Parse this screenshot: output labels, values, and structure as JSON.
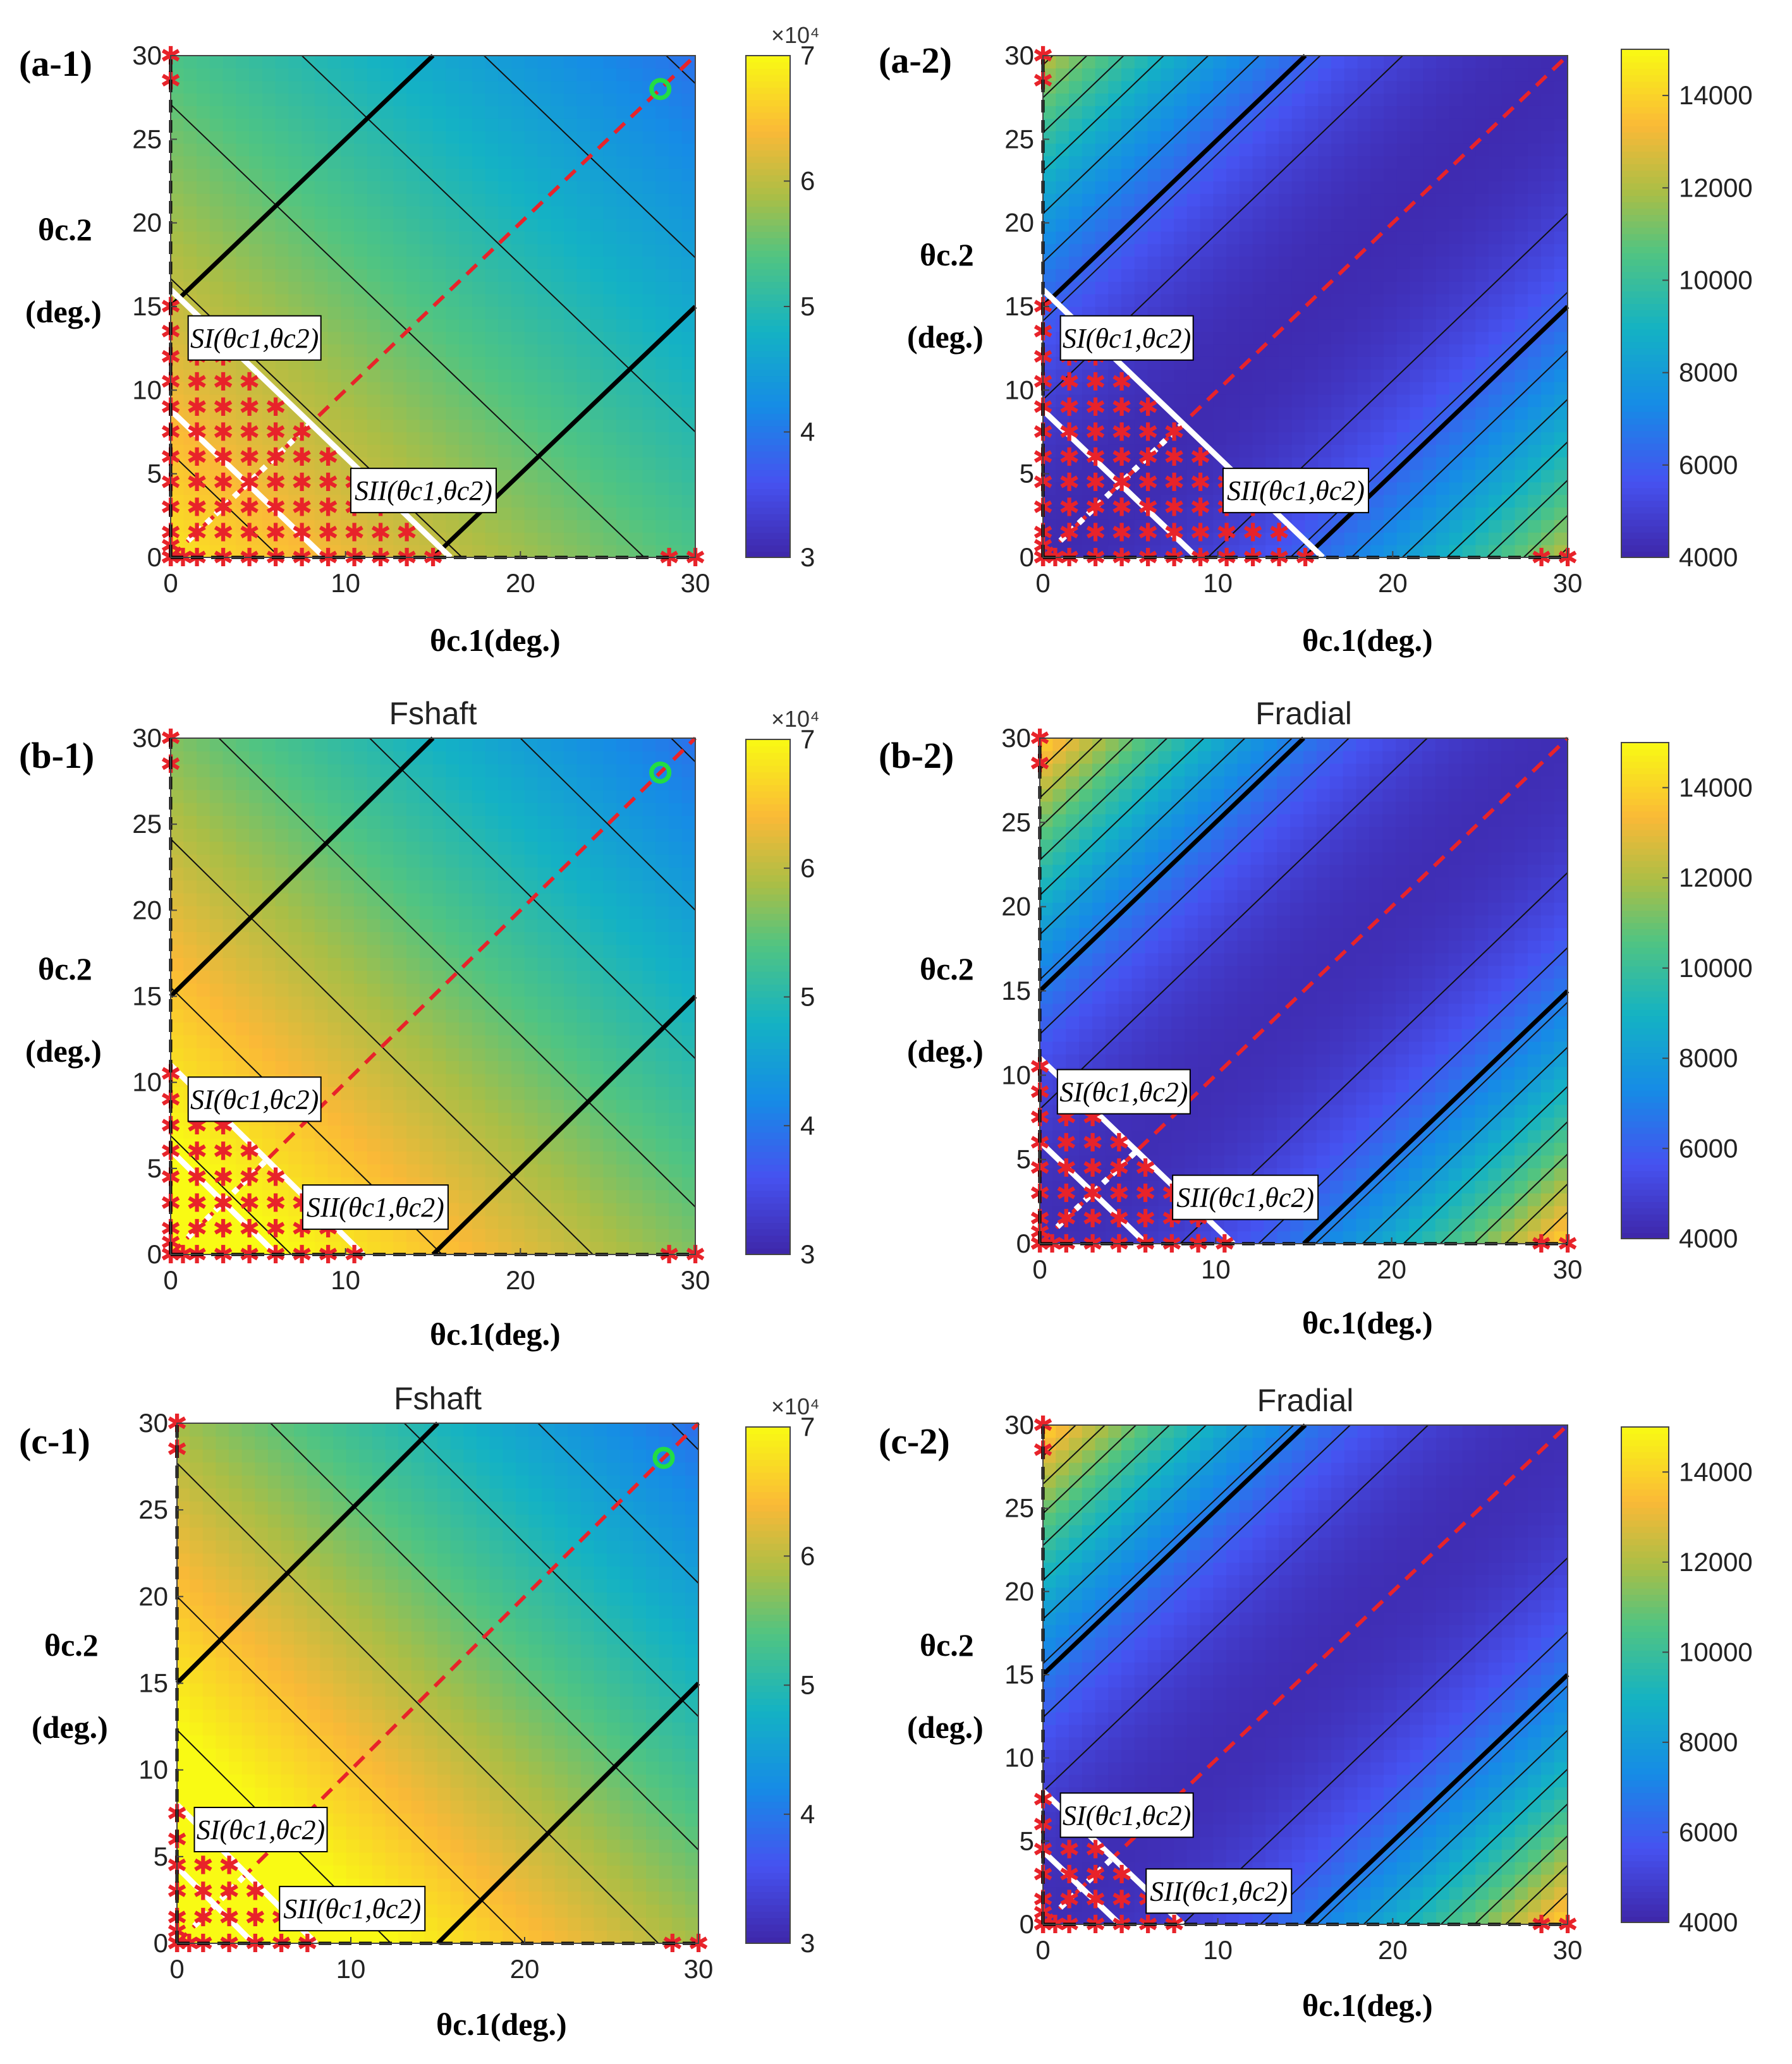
{
  "figure": {
    "layout": "3 rows x 2 columns of contour panels"
  },
  "chart_data": [
    {
      "id": "a-1",
      "label": "(a-1)",
      "type": "contour",
      "title": "",
      "multiplier": "×10⁴",
      "xlabel": "θc.1(deg.)",
      "ylabel": "θc.2 (deg.)",
      "xlim": [
        0,
        30
      ],
      "ylim": [
        0,
        30
      ],
      "xticks": [
        "0",
        "10",
        "20",
        "30"
      ],
      "yticks": [
        "0",
        "5",
        "10",
        "15",
        "20",
        "25",
        "30"
      ],
      "colorbar": {
        "min": 3,
        "max": 7,
        "ticks": [
          "3",
          "4",
          "5",
          "6",
          "7"
        ]
      },
      "field": {
        "base": 6.8,
        "kSum": -0.048,
        "kDiff": 0,
        "levels": [
          4.0,
          4.5,
          5.0,
          5.5,
          6.0,
          6.5
        ]
      },
      "annotations": [
        "SI(θc1,θc2)",
        "SII(θc1,θc2)"
      ],
      "optimum": [
        28,
        28
      ]
    },
    {
      "id": "a-2",
      "label": "(a-2)",
      "type": "contour",
      "title": "",
      "multiplier": "",
      "xlabel": "θc.1(deg.)",
      "ylabel": "θc.2 (deg.)",
      "xlim": [
        0,
        30
      ],
      "ylim": [
        0,
        30
      ],
      "xticks": [
        "0",
        "10",
        "20",
        "30"
      ],
      "yticks": [
        "0",
        "5",
        "10",
        "15",
        "20",
        "25",
        "30"
      ],
      "colorbar": {
        "min": 4000,
        "max": 15000,
        "ticks": [
          "4000",
          "6000",
          "8000",
          "10000",
          "12000",
          "14000"
        ]
      },
      "field": {
        "base": 4200,
        "kSum": 0,
        "kDiff": 9,
        "levels": [
          5000,
          6000,
          7000,
          8000,
          9000,
          10000,
          11000,
          12000
        ]
      },
      "annotations": [
        "SI(θc1,θc2)",
        "SII(θc1,θc2)"
      ]
    },
    {
      "id": "b-1",
      "label": "(b-1)",
      "type": "contour",
      "title": "Fshaft",
      "multiplier": "×10⁴",
      "xlabel": "θc.1(deg.)",
      "ylabel": "θc.2 (deg.)",
      "xlim": [
        0,
        30
      ],
      "ylim": [
        0,
        30
      ],
      "xticks": [
        "0",
        "10",
        "20",
        "30"
      ],
      "yticks": [
        "0",
        "5",
        "10",
        "15",
        "20",
        "25",
        "30"
      ],
      "colorbar": {
        "min": 3,
        "max": 7,
        "ticks": [
          "3",
          "4",
          "5",
          "6",
          "7"
        ]
      },
      "field": {
        "base": 7.4,
        "kSum": -0.058,
        "kDiff": 0,
        "levels": [
          4.0,
          4.5,
          5.0,
          5.5,
          6.0,
          6.5,
          7.0
        ]
      },
      "annotations": [
        "SI(θc1,θc2)",
        "SII(θc1,θc2)"
      ],
      "optimum": [
        28,
        28
      ]
    },
    {
      "id": "b-2",
      "label": "(b-2)",
      "type": "contour",
      "title": "Fradial",
      "multiplier": "",
      "xlabel": "θc.1(deg.)",
      "ylabel": "θc.2 (deg.)",
      "xlim": [
        0,
        30
      ],
      "ylim": [
        0,
        30
      ],
      "xticks": [
        "0",
        "10",
        "20",
        "30"
      ],
      "yticks": [
        "0",
        "5",
        "10",
        "15",
        "20",
        "25",
        "30"
      ],
      "colorbar": {
        "min": 4000,
        "max": 15000,
        "ticks": [
          "4000",
          "6000",
          "8000",
          "10000",
          "12000",
          "14000"
        ]
      },
      "field": {
        "base": 4300,
        "kSum": 0,
        "kDiff": 11,
        "levels": [
          5000,
          6000,
          7000,
          8000,
          9000,
          10000,
          11000,
          12000,
          13000
        ]
      },
      "annotations": [
        "SI(θc1,θc2)",
        "SII(θc1,θc2)"
      ]
    },
    {
      "id": "c-1",
      "label": "(c-1)",
      "type": "contour",
      "title": "Fshaft",
      "multiplier": "×10⁴",
      "xlabel": "θc.1(deg.)",
      "ylabel": "θc.2 (deg.)",
      "xlim": [
        0,
        30
      ],
      "ylim": [
        0,
        30
      ],
      "xticks": [
        "0",
        "10",
        "20",
        "30"
      ],
      "yticks": [
        "0",
        "5",
        "10",
        "15",
        "20",
        "25",
        "30"
      ],
      "colorbar": {
        "min": 3,
        "max": 7,
        "ticks": [
          "3",
          "4",
          "5",
          "6",
          "7"
        ]
      },
      "field": {
        "base": 7.8,
        "kSum": -0.065,
        "kDiff": 0,
        "levels": [
          4.0,
          4.5,
          5.0,
          5.5,
          6.0,
          6.5,
          7.0
        ]
      },
      "annotations": [
        "SI(θc1,θc2)",
        "SII(θc1,θc2)"
      ],
      "optimum": [
        28,
        28
      ]
    },
    {
      "id": "c-2",
      "label": "(c-2)",
      "type": "contour",
      "title": "Fradial",
      "multiplier": "",
      "xlabel": "θc.1(deg.)",
      "ylabel": "θc.2 (deg.)",
      "xlim": [
        0,
        30
      ],
      "ylim": [
        0,
        30
      ],
      "xticks": [
        "0",
        "10",
        "20",
        "30"
      ],
      "yticks": [
        "0",
        "5",
        "10",
        "15",
        "20",
        "25",
        "30"
      ],
      "colorbar": {
        "min": 4000,
        "max": 15000,
        "ticks": [
          "4000",
          "6000",
          "8000",
          "10000",
          "12000",
          "14000"
        ]
      },
      "field": {
        "base": 4300,
        "kSum": 0,
        "kDiff": 11,
        "levels": [
          5000,
          6000,
          7000,
          8000,
          9000,
          10000,
          11000,
          12000,
          13000
        ]
      },
      "annotations": [
        "SI(θc1,θc2)",
        "SII(θc1,θc2)"
      ]
    }
  ]
}
